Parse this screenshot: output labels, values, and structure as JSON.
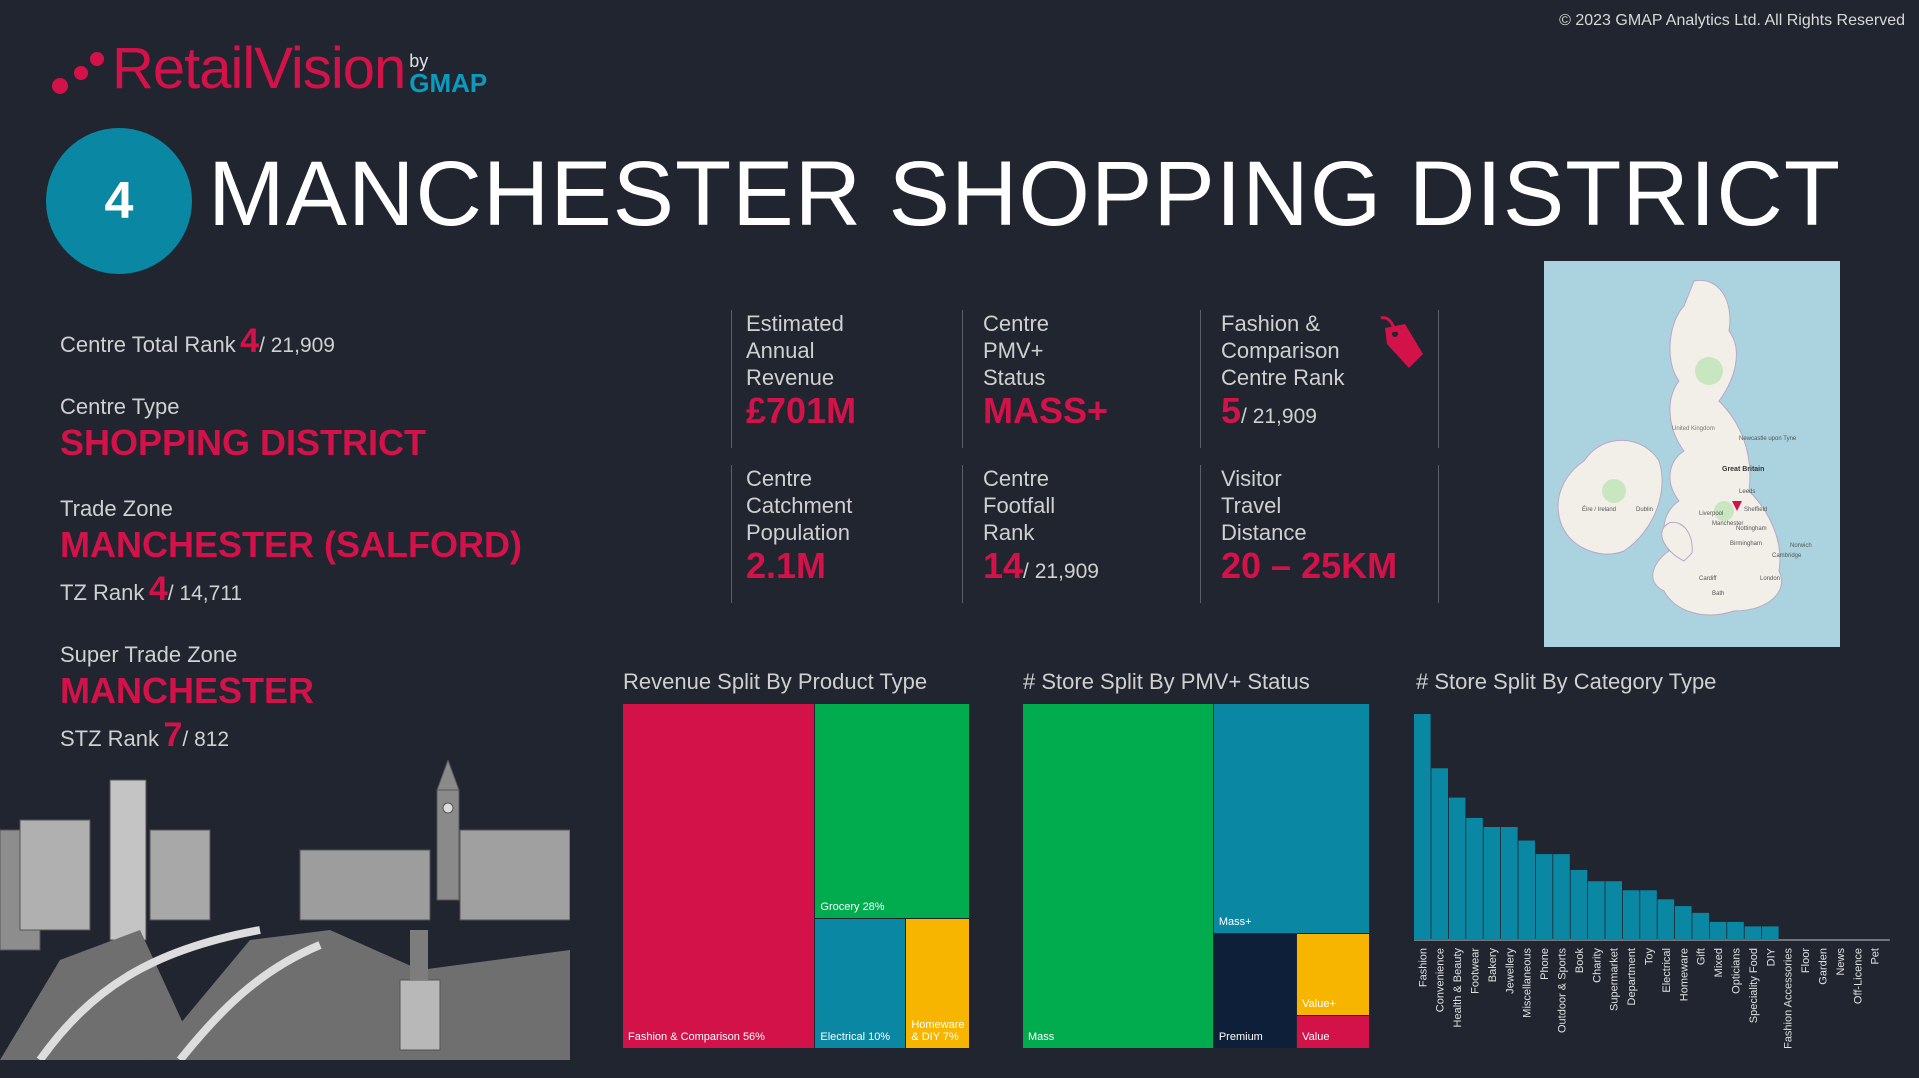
{
  "copyright": "© 2023 GMAP Analytics Ltd. All Rights Reserved",
  "logo": {
    "name_part1": "Retail",
    "name_part2": "Vision",
    "by": "by",
    "brand": "GMAP"
  },
  "header": {
    "rank": "4",
    "title": "MANCHESTER SHOPPING DISTRICT"
  },
  "left": {
    "total_rank_label": "Centre Total Rank",
    "total_rank": "4",
    "total_rank_of": "/ 21,909",
    "centre_type_label": "Centre Type",
    "centre_type": "SHOPPING DISTRICT",
    "trade_zone_label": "Trade Zone",
    "trade_zone": "MANCHESTER (SALFORD)",
    "tz_rank_label": "TZ Rank",
    "tz_rank": "4",
    "tz_rank_of": "/ 14,711",
    "super_trade_zone_label": "Super Trade Zone",
    "super_trade_zone": "MANCHESTER",
    "stz_rank_label": "STZ Rank",
    "stz_rank": "7",
    "stz_rank_of": "/ 812"
  },
  "kpis": {
    "revenue_l1": "Estimated",
    "revenue_l2": "Annual",
    "revenue_l3": "Revenue",
    "revenue_value": "£701M",
    "pmv_l1": "Centre",
    "pmv_l2": "PMV+",
    "pmv_l3": "Status",
    "pmv_value": "MASS+",
    "fashion_l1": "Fashion &",
    "fashion_l2": "Comparison",
    "fashion_l3": "Centre Rank",
    "fashion_value": "5",
    "fashion_of": "/ 21,909",
    "catch_l1": "Centre",
    "catch_l2": "Catchment",
    "catch_l3": "Population",
    "catch_value": "2.1M",
    "foot_l1": "Centre",
    "foot_l2": "Footfall",
    "foot_l3": "Rank",
    "foot_value": "14",
    "foot_of": "/ 21,909",
    "travel_l1": "Visitor",
    "travel_l2": "Travel",
    "travel_l3": "Distance",
    "travel_value": "20 – 25KM"
  },
  "icons": {
    "price_tag": "price-tag-icon",
    "map_marker": "map-marker-icon"
  },
  "map": {
    "labels": [
      "United Kingdom",
      "Great Britain",
      "Newcastle upon Tyne",
      "Leeds",
      "Sheffield",
      "Liverpool",
      "Manchester",
      "Nottingham",
      "Birmingham",
      "Éire / Ireland",
      "Dublin",
      "Cardiff",
      "London",
      "Bath",
      "Cambridge",
      "Norwich"
    ]
  },
  "colors": {
    "background": "#21252f",
    "accent": "#d4124a",
    "teal": "#0a87a3",
    "green": "#00ac4e",
    "yellow": "#f7b500",
    "navy": "#0e1f3a"
  },
  "chart_data": [
    {
      "type": "treemap",
      "title": "Revenue Split By Product Type",
      "items": [
        {
          "label": "Fashion & Comparison 56%",
          "value": 56,
          "color": "#d4124a"
        },
        {
          "label": "Grocery 28%",
          "value": 28,
          "color": "#00ac4e"
        },
        {
          "label": "Electrical 10%",
          "value": 10,
          "color": "#0a87a3"
        },
        {
          "label": "Homeware & DIY 7%",
          "value": 7,
          "color": "#f7b500"
        }
      ]
    },
    {
      "type": "treemap",
      "title": "# Store Split By PMV+ Status",
      "items": [
        {
          "label": "Mass",
          "value": 55,
          "color": "#00ac4e"
        },
        {
          "label": "Mass+",
          "value": 30,
          "color": "#0a87a3"
        },
        {
          "label": "Premium",
          "value": 8,
          "color": "#0e1f3a"
        },
        {
          "label": "Value+",
          "value": 5,
          "color": "#f7b500"
        },
        {
          "label": "Value",
          "value": 2,
          "color": "#d4124a"
        }
      ]
    },
    {
      "type": "bar",
      "title": "# Store Split By Category Type",
      "categories": [
        "Fashion",
        "Convenience",
        "Health & Beauty",
        "Footwear",
        "Bakery",
        "Jewellery",
        "Miscellaneous",
        "Phone",
        "Outdoor & Sports",
        "Book",
        "Charity",
        "Supermarket",
        "Department",
        "Toy",
        "Electrical",
        "Homeware",
        "Gift",
        "Mixed",
        "Opticians",
        "Speciality Food",
        "DIY",
        "Fashion Accessories",
        "Floor",
        "Garden",
        "News",
        "Off-Licence",
        "Pet"
      ],
      "values": [
        100,
        76,
        63,
        54,
        50,
        50,
        44,
        38,
        38,
        31,
        26,
        26,
        22,
        22,
        18,
        15,
        12,
        8,
        8,
        6,
        6,
        0,
        0,
        0,
        0,
        0,
        0
      ],
      "color": "#0a87a3"
    }
  ]
}
